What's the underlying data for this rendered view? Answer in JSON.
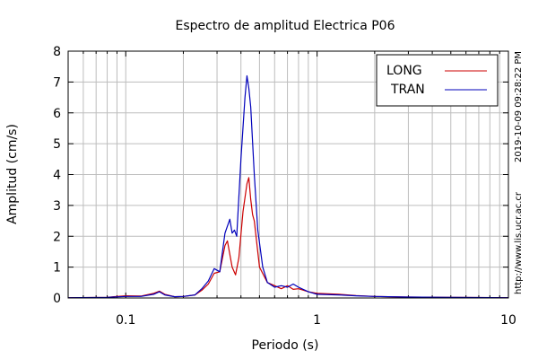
{
  "chart_data": {
    "type": "line",
    "title": "Espectro de amplitud Electrica P06",
    "xlabel": "Periodo (s)",
    "ylabel": "Amplitud (cm/s)",
    "x_scale": "log",
    "xlim": [
      0.05,
      10
    ],
    "ylim": [
      0,
      8
    ],
    "x_ticks": [
      {
        "value": 0.1,
        "label": "0.1"
      },
      {
        "value": 1,
        "label": "1"
      },
      {
        "value": 10,
        "label": "10"
      }
    ],
    "y_ticks": [
      0,
      1,
      2,
      3,
      4,
      5,
      6,
      7,
      8
    ],
    "grid": true,
    "legend_position": "top-right",
    "series": [
      {
        "name": "LONG",
        "color": "#cc0000",
        "points": [
          [
            0.05,
            0.01
          ],
          [
            0.08,
            0.02
          ],
          [
            0.09,
            0.05
          ],
          [
            0.1,
            0.07
          ],
          [
            0.12,
            0.06
          ],
          [
            0.14,
            0.15
          ],
          [
            0.15,
            0.22
          ],
          [
            0.16,
            0.12
          ],
          [
            0.18,
            0.04
          ],
          [
            0.2,
            0.05
          ],
          [
            0.23,
            0.1
          ],
          [
            0.25,
            0.25
          ],
          [
            0.27,
            0.45
          ],
          [
            0.29,
            0.8
          ],
          [
            0.31,
            0.85
          ],
          [
            0.33,
            1.7
          ],
          [
            0.34,
            1.85
          ],
          [
            0.36,
            1.0
          ],
          [
            0.375,
            0.75
          ],
          [
            0.39,
            1.3
          ],
          [
            0.41,
            2.8
          ],
          [
            0.43,
            3.7
          ],
          [
            0.44,
            3.9
          ],
          [
            0.45,
            3.2
          ],
          [
            0.46,
            2.7
          ],
          [
            0.47,
            2.5
          ],
          [
            0.5,
            1.0
          ],
          [
            0.55,
            0.5
          ],
          [
            0.6,
            0.4
          ],
          [
            0.65,
            0.3
          ],
          [
            0.7,
            0.4
          ],
          [
            0.75,
            0.28
          ],
          [
            0.8,
            0.3
          ],
          [
            0.9,
            0.2
          ],
          [
            1.0,
            0.15
          ],
          [
            1.3,
            0.12
          ],
          [
            1.6,
            0.08
          ],
          [
            2.0,
            0.05
          ],
          [
            3.0,
            0.03
          ],
          [
            5.0,
            0.02
          ],
          [
            10,
            0.01
          ]
        ]
      },
      {
        "name": "TRAN",
        "color": "#0000bb",
        "points": [
          [
            0.05,
            0.01
          ],
          [
            0.08,
            0.02
          ],
          [
            0.1,
            0.05
          ],
          [
            0.12,
            0.05
          ],
          [
            0.14,
            0.12
          ],
          [
            0.15,
            0.2
          ],
          [
            0.16,
            0.1
          ],
          [
            0.18,
            0.04
          ],
          [
            0.2,
            0.05
          ],
          [
            0.23,
            0.1
          ],
          [
            0.25,
            0.3
          ],
          [
            0.27,
            0.55
          ],
          [
            0.29,
            0.95
          ],
          [
            0.31,
            0.85
          ],
          [
            0.33,
            2.1
          ],
          [
            0.35,
            2.55
          ],
          [
            0.36,
            2.1
          ],
          [
            0.37,
            2.2
          ],
          [
            0.38,
            2.0
          ],
          [
            0.4,
            4.5
          ],
          [
            0.42,
            6.5
          ],
          [
            0.43,
            7.2
          ],
          [
            0.44,
            6.8
          ],
          [
            0.45,
            6.2
          ],
          [
            0.47,
            4.0
          ],
          [
            0.49,
            2.2
          ],
          [
            0.52,
            1.0
          ],
          [
            0.55,
            0.5
          ],
          [
            0.6,
            0.35
          ],
          [
            0.65,
            0.4
          ],
          [
            0.7,
            0.35
          ],
          [
            0.75,
            0.45
          ],
          [
            0.8,
            0.35
          ],
          [
            0.9,
            0.2
          ],
          [
            1.0,
            0.12
          ],
          [
            1.3,
            0.1
          ],
          [
            1.6,
            0.07
          ],
          [
            2.0,
            0.05
          ],
          [
            3.0,
            0.03
          ],
          [
            5.0,
            0.02
          ],
          [
            10,
            0.01
          ]
        ]
      }
    ]
  },
  "side_labels": {
    "timestamp": "2019-10-09 09:28:22 PM",
    "url": "http://www.lis.ucr.ac.cr"
  }
}
